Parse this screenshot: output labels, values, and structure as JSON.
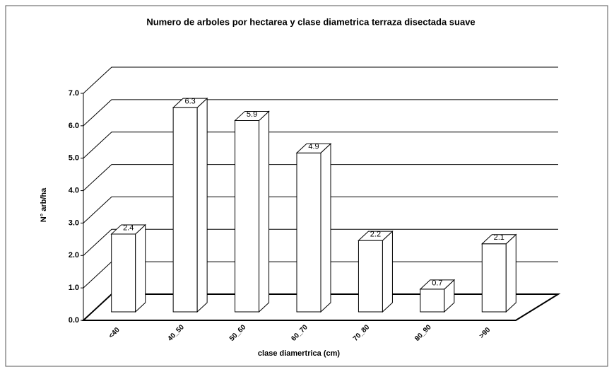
{
  "chart_data": {
    "type": "bar3d",
    "title": "Numero de arboles por hectarea y clase diametrica terraza disectada suave",
    "x_label": "clase diamertrica (cm)",
    "y_label": "N° arb/ha",
    "categories": [
      "<40",
      "40_50",
      "50_60",
      "60_70",
      "70_80",
      "80_90",
      ">90"
    ],
    "values": [
      2.4,
      6.3,
      5.9,
      4.9,
      2.2,
      0.7,
      2.1
    ],
    "color": "#ffffff",
    "ylim": [
      0,
      7
    ],
    "yticks": [
      {
        "value": 0,
        "label": "0.0"
      },
      {
        "value": 1,
        "label": "1.0"
      },
      {
        "value": 2,
        "label": "2.0"
      },
      {
        "value": 3,
        "label": "3.0"
      },
      {
        "value": 4,
        "label": "4.0"
      },
      {
        "value": 5,
        "label": "5.0"
      },
      {
        "value": 6,
        "label": "6.0"
      },
      {
        "value": 7,
        "label": "7.0"
      }
    ],
    "grid": true
  }
}
